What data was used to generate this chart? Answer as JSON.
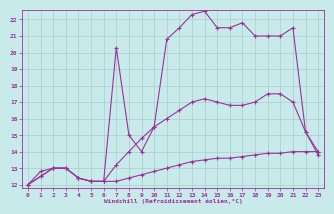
{
  "background_color": "#c8eaea",
  "grid_color": "#aacccc",
  "line_color": "#993399",
  "xlabel": "Windchill (Refroidissement éolien,°C)",
  "xlim": [
    -0.5,
    23.5
  ],
  "ylim": [
    11.8,
    22.6
  ],
  "yticks": [
    12,
    13,
    14,
    15,
    16,
    17,
    18,
    19,
    20,
    21,
    22
  ],
  "xticks": [
    0,
    1,
    2,
    3,
    4,
    5,
    6,
    7,
    8,
    9,
    10,
    11,
    12,
    13,
    14,
    15,
    16,
    17,
    18,
    19,
    20,
    21,
    22,
    23
  ],
  "series": [
    {
      "comment": "bottom nearly-flat line going from 12 up to ~14",
      "x": [
        0,
        1,
        2,
        3,
        4,
        5,
        6,
        7,
        8,
        9,
        10,
        11,
        12,
        13,
        14,
        15,
        16,
        17,
        18,
        19,
        20,
        21,
        22,
        23
      ],
      "y": [
        12.0,
        12.8,
        13.0,
        13.0,
        12.4,
        12.2,
        12.2,
        12.2,
        12.4,
        12.6,
        12.8,
        13.0,
        13.2,
        13.4,
        13.5,
        13.6,
        13.6,
        13.7,
        13.8,
        13.9,
        13.9,
        14.0,
        14.0,
        14.0
      ]
    },
    {
      "comment": "middle line peaking at 17.5 around x=19",
      "x": [
        0,
        1,
        2,
        3,
        4,
        5,
        6,
        7,
        8,
        9,
        10,
        11,
        12,
        13,
        14,
        15,
        16,
        17,
        18,
        19,
        20,
        21,
        22,
        23
      ],
      "y": [
        12.0,
        12.5,
        13.0,
        13.0,
        12.4,
        12.2,
        12.2,
        13.2,
        14.0,
        14.8,
        15.5,
        16.0,
        16.5,
        17.0,
        17.2,
        17.0,
        16.8,
        16.8,
        17.0,
        17.5,
        17.5,
        17.0,
        15.2,
        14.0
      ]
    },
    {
      "comment": "top line with sharp spike at x=7, peaking ~22.3 at x=13-14",
      "x": [
        0,
        1,
        2,
        3,
        4,
        5,
        6,
        7,
        8,
        9,
        10,
        11,
        12,
        13,
        14,
        15,
        16,
        17,
        18,
        19,
        20,
        21,
        22,
        23
      ],
      "y": [
        12.0,
        12.5,
        13.0,
        13.0,
        12.4,
        12.2,
        12.2,
        20.3,
        15.0,
        14.0,
        15.5,
        20.8,
        21.5,
        22.3,
        22.5,
        21.5,
        21.5,
        21.8,
        21.0,
        21.0,
        21.0,
        21.5,
        15.2,
        13.8
      ]
    }
  ]
}
